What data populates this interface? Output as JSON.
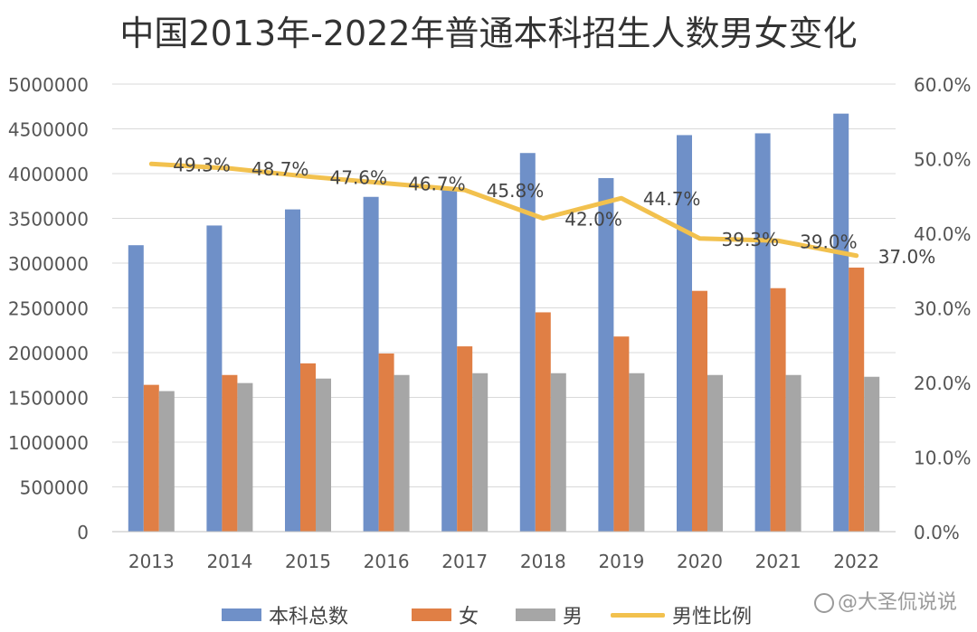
{
  "chart_data": {
    "type": "bar",
    "title": "中国2013年-2022年普通本科招生人数男女变化",
    "categories": [
      "2013",
      "2014",
      "2015",
      "2016",
      "2017",
      "2018",
      "2019",
      "2020",
      "2021",
      "2022"
    ],
    "series": [
      {
        "name": "本科总数",
        "type": "bar",
        "axis": "left",
        "color": "#6f90c8",
        "values": [
          3200000,
          3420000,
          3600000,
          3740000,
          3830000,
          4230000,
          3950000,
          4430000,
          4450000,
          4670000
        ]
      },
      {
        "name": "女",
        "type": "bar",
        "axis": "left",
        "color": "#e07f45",
        "values": [
          1640000,
          1750000,
          1880000,
          1990000,
          2070000,
          2450000,
          2180000,
          2690000,
          2720000,
          2950000
        ]
      },
      {
        "name": "男",
        "type": "bar",
        "axis": "left",
        "color": "#a6a6a6",
        "values": [
          1570000,
          1660000,
          1710000,
          1750000,
          1770000,
          1770000,
          1770000,
          1750000,
          1750000,
          1730000
        ]
      },
      {
        "name": "男性比例",
        "type": "line",
        "axis": "right",
        "color": "#f2c14e",
        "values": [
          49.3,
          48.7,
          47.6,
          46.7,
          45.8,
          42.0,
          44.7,
          39.3,
          39.0,
          37.0
        ],
        "labels": [
          "49.3%",
          "48.7%",
          "47.6%",
          "46.7%",
          "45.8%",
          "42.0%",
          "44.7%",
          "39.3%",
          "39.0%",
          "37.0%"
        ]
      }
    ],
    "y_left": {
      "ylim": [
        0,
        5000000
      ],
      "ticks": [
        "0",
        "500000",
        "1000000",
        "1500000",
        "2000000",
        "2500000",
        "3000000",
        "3500000",
        "4000000",
        "4500000",
        "5000000"
      ]
    },
    "y_right": {
      "ylim": [
        0,
        60
      ],
      "ticks": [
        "0.0%",
        "10.0%",
        "20.0%",
        "30.0%",
        "40.0%",
        "50.0%",
        "60.0%"
      ]
    },
    "grid": true,
    "legend_position": "bottom"
  },
  "watermark": "@大圣侃说说"
}
